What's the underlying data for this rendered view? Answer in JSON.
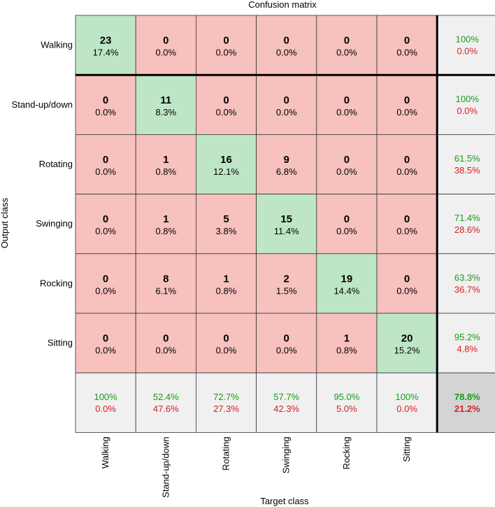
{
  "chart_data": {
    "type": "heatmap",
    "title": "Confusion matrix",
    "xlabel": "Target class",
    "ylabel": "Output class",
    "classes": [
      "Walking",
      "Stand-up/down",
      "Rotating",
      "Swinging",
      "Rocking",
      "Sitting"
    ],
    "matrix": [
      [
        23,
        0,
        0,
        0,
        0,
        0
      ],
      [
        0,
        11,
        0,
        0,
        0,
        0
      ],
      [
        0,
        1,
        16,
        9,
        0,
        0
      ],
      [
        0,
        1,
        5,
        15,
        0,
        0
      ],
      [
        0,
        8,
        1,
        2,
        19,
        0
      ],
      [
        0,
        0,
        0,
        0,
        1,
        20
      ]
    ],
    "cell_percent": [
      [
        "17.4%",
        "0.0%",
        "0.0%",
        "0.0%",
        "0.0%",
        "0.0%"
      ],
      [
        "0.0%",
        "8.3%",
        "0.0%",
        "0.0%",
        "0.0%",
        "0.0%"
      ],
      [
        "0.0%",
        "0.8%",
        "12.1%",
        "6.8%",
        "0.0%",
        "0.0%"
      ],
      [
        "0.0%",
        "0.8%",
        "3.8%",
        "11.4%",
        "0.0%",
        "0.0%"
      ],
      [
        "0.0%",
        "6.1%",
        "0.8%",
        "1.5%",
        "14.4%",
        "0.0%"
      ],
      [
        "0.0%",
        "0.0%",
        "0.0%",
        "0.0%",
        "0.8%",
        "15.2%"
      ]
    ],
    "row_summary": [
      {
        "correct": "100%",
        "incorrect": "0.0%"
      },
      {
        "correct": "100%",
        "incorrect": "0.0%"
      },
      {
        "correct": "61.5%",
        "incorrect": "38.5%"
      },
      {
        "correct": "71.4%",
        "incorrect": "28.6%"
      },
      {
        "correct": "63.3%",
        "incorrect": "36.7%"
      },
      {
        "correct": "95.2%",
        "incorrect": "4.8%"
      }
    ],
    "column_summary": [
      {
        "correct": "100%",
        "incorrect": "0.0%"
      },
      {
        "correct": "52.4%",
        "incorrect": "47.6%"
      },
      {
        "correct": "72.7%",
        "incorrect": "27.3%"
      },
      {
        "correct": "57.7%",
        "incorrect": "42.3%"
      },
      {
        "correct": "95.0%",
        "incorrect": "5.0%"
      },
      {
        "correct": "100%",
        "incorrect": "0.0%"
      }
    ],
    "overall": {
      "correct": "78.8%",
      "incorrect": "21.2%"
    }
  },
  "colors": {
    "diagonal": "#bee6c6",
    "off_diagonal": "#f7c1bd",
    "summary": "#f0f0f0",
    "overall": "#d4d4d4",
    "correct_text": "#1a9a1a",
    "incorrect_text": "#d42020",
    "grid": "#333333"
  }
}
